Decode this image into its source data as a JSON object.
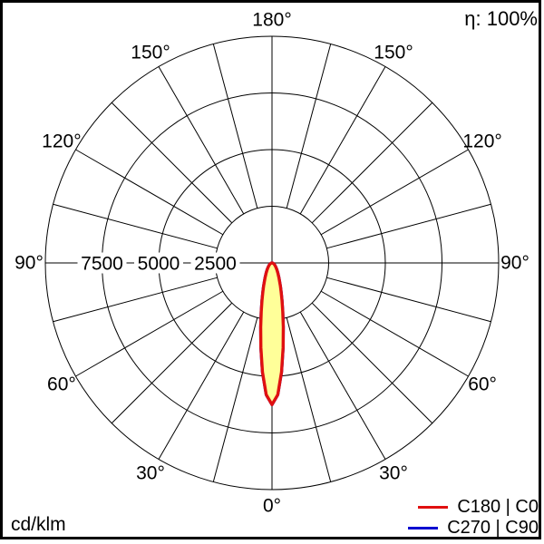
{
  "header": {
    "efficiency_label": "η: 100%"
  },
  "footer": {
    "unit_label": "cd/klm"
  },
  "legend": {
    "items": [
      {
        "label": "C180 | C0",
        "color": "#e01010"
      },
      {
        "label": "C270 | C90",
        "color": "#0000d0"
      }
    ]
  },
  "chart_data": {
    "type": "polar",
    "description": "Luminous intensity distribution curve; gamma angle measured from 0° (bottom/nadir) to 180° (top/zenith), values in cd/klm",
    "unit": "cd/klm",
    "efficiency": "100%",
    "center": {
      "x": 300,
      "y": 290
    },
    "radius_px": 250,
    "r_max": 10000,
    "rings": [
      2500,
      5000,
      7500,
      10000
    ],
    "ring_label_values": [
      7500,
      5000,
      2500
    ],
    "angle_step_deg": 15,
    "label_radius_px": 268,
    "grid_color": "#000000",
    "angle_labels": [
      {
        "deg": 0,
        "text": "0°"
      },
      {
        "deg": 30,
        "text": "30°"
      },
      {
        "deg": 60,
        "text": "60°"
      },
      {
        "deg": 90,
        "text": "90°"
      },
      {
        "deg": 120,
        "text": "120°"
      },
      {
        "deg": 150,
        "text": "150°"
      },
      {
        "deg": 180,
        "text": "180°"
      }
    ],
    "series": [
      {
        "id": "c180-c0",
        "name": "C180 | C0",
        "color": "#e01010",
        "fill": "#ffff99",
        "gamma_deg": [
          0,
          2.5,
          5,
          7.5,
          10,
          12.5,
          15,
          17.5,
          20,
          25,
          30,
          35,
          40,
          45,
          50,
          55,
          60,
          65,
          70,
          75,
          80,
          85,
          90
        ],
        "values": [
          6250,
          5820,
          4830,
          3760,
          2870,
          2190,
          1700,
          1340,
          1080,
          725,
          515,
          380,
          287,
          221,
          172,
          135,
          106,
          82,
          62,
          44,
          29,
          14,
          0
        ]
      },
      {
        "id": "c270-c90",
        "name": "C270 | C90",
        "color": "#0000d0",
        "fill": "none",
        "gamma_deg": [
          0,
          2.5,
          5,
          7.5,
          10,
          12.5,
          15,
          17.5,
          20,
          25,
          30,
          35,
          40,
          45,
          50,
          55,
          60,
          65,
          70,
          75,
          80,
          85,
          90
        ],
        "values": [
          6250,
          5820,
          4830,
          3760,
          2870,
          2190,
          1700,
          1340,
          1080,
          725,
          515,
          380,
          287,
          221,
          172,
          135,
          106,
          82,
          62,
          44,
          29,
          14,
          0
        ]
      }
    ]
  }
}
